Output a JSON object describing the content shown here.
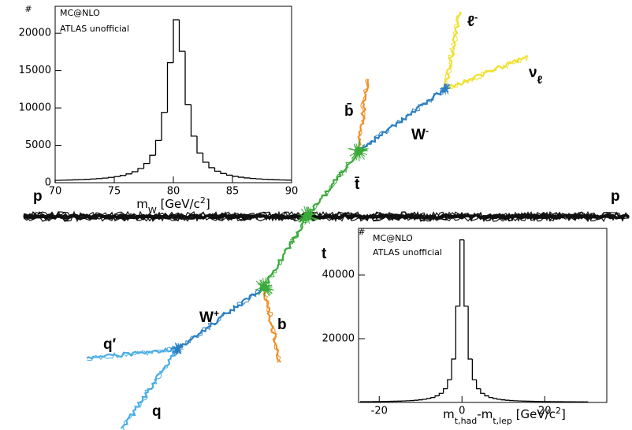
{
  "chart_data": [
    {
      "type": "histogram",
      "ylabel": "#",
      "annotations": [
        "MC@NLO",
        "ATLAS unofficial"
      ],
      "xlabel": [
        "m",
        "W",
        " [GeV/c",
        "2",
        "]"
      ],
      "bins": [
        70,
        70.5,
        71,
        71.5,
        72,
        72.5,
        73,
        73.5,
        74,
        74.5,
        75,
        75.5,
        76,
        76.5,
        77,
        77.5,
        78,
        78.5,
        79,
        79.5,
        80,
        80.5,
        81,
        81.5,
        82,
        82.5,
        83,
        83.5,
        84,
        84.5,
        85,
        85.5,
        86,
        86.5,
        87,
        87.5,
        88,
        88.5,
        89,
        89.5,
        90
      ],
      "values": [
        320,
        340,
        360,
        390,
        420,
        455,
        500,
        550,
        620,
        710,
        820,
        970,
        1180,
        1470,
        1900,
        2570,
        3670,
        5650,
        9400,
        16060,
        21800,
        17580,
        10460,
        6230,
        3980,
        2740,
        2010,
        1540,
        1230,
        1010,
        850,
        730,
        640,
        570,
        510,
        460,
        430,
        390,
        370,
        350
      ],
      "color": "#000000",
      "xlim": [
        70,
        90
      ],
      "xticks": [
        70,
        75,
        80,
        85,
        90
      ],
      "ylim": [
        0,
        23600
      ],
      "yticks": [
        0,
        5000,
        10000,
        15000,
        20000
      ]
    },
    {
      "type": "histogram",
      "ylabel": "#",
      "annotations": [
        "MC@NLO",
        "ATLAS unofficial"
      ],
      "xlabel": [
        "m",
        "t,had",
        "-m",
        "t,lep",
        " [GeV/c",
        "2",
        "]"
      ],
      "bins": [
        -24.5,
        -23.5,
        -22.5,
        -21.5,
        -20.5,
        -19.5,
        -18.5,
        -17.5,
        -16.5,
        -15.5,
        -14.5,
        -13.5,
        -12.5,
        -11.5,
        -10.5,
        -9.5,
        -8.5,
        -7.5,
        -6.5,
        -5.5,
        -4.5,
        -3.5,
        -2.5,
        -1.5,
        -0.5,
        0.5,
        1.5,
        2.5,
        3.5,
        4.5,
        5.5,
        6.5,
        7.5,
        8.5,
        9.5,
        10.5,
        11.5,
        12.5,
        13.5,
        14.5,
        15.5,
        16.5,
        17.5,
        18.5,
        19.5,
        20.5,
        21.5,
        22.5,
        23.5,
        24.5,
        25.5,
        26.5,
        27.5,
        28.5,
        29.5,
        30.5
      ],
      "values": [
        230,
        240,
        250,
        270,
        280,
        300,
        330,
        350,
        390,
        420,
        470,
        530,
        600,
        700,
        820,
        990,
        1220,
        1560,
        2060,
        2880,
        4310,
        7130,
        13600,
        30200,
        51000,
        30200,
        13600,
        7130,
        4310,
        2880,
        2060,
        1560,
        1220,
        990,
        820,
        700,
        600,
        530,
        470,
        420,
        390,
        350,
        330,
        300,
        280,
        270,
        250,
        240,
        230,
        220,
        210,
        200,
        190,
        190,
        180
      ],
      "color": "#000000",
      "xlim": [
        -25,
        35
      ],
      "xticks": [
        -20,
        0,
        20
      ],
      "ylim": [
        0,
        54600
      ],
      "yticks": [
        20000,
        40000
      ]
    }
  ],
  "diagram": {
    "labels": [
      {
        "text": "p"
      },
      {
        "text": "p"
      },
      {
        "text": "b̄"
      },
      {
        "text": "t̄"
      },
      {
        "text": "W",
        "sup": "-"
      },
      {
        "text": "ℓ",
        "sup": "-"
      },
      {
        "text": "ν",
        "sub": "ℓ"
      },
      {
        "text": "t"
      },
      {
        "text": "W",
        "sup": "+"
      },
      {
        "text": "b"
      },
      {
        "text": "q′"
      },
      {
        "text": "q"
      }
    ]
  }
}
